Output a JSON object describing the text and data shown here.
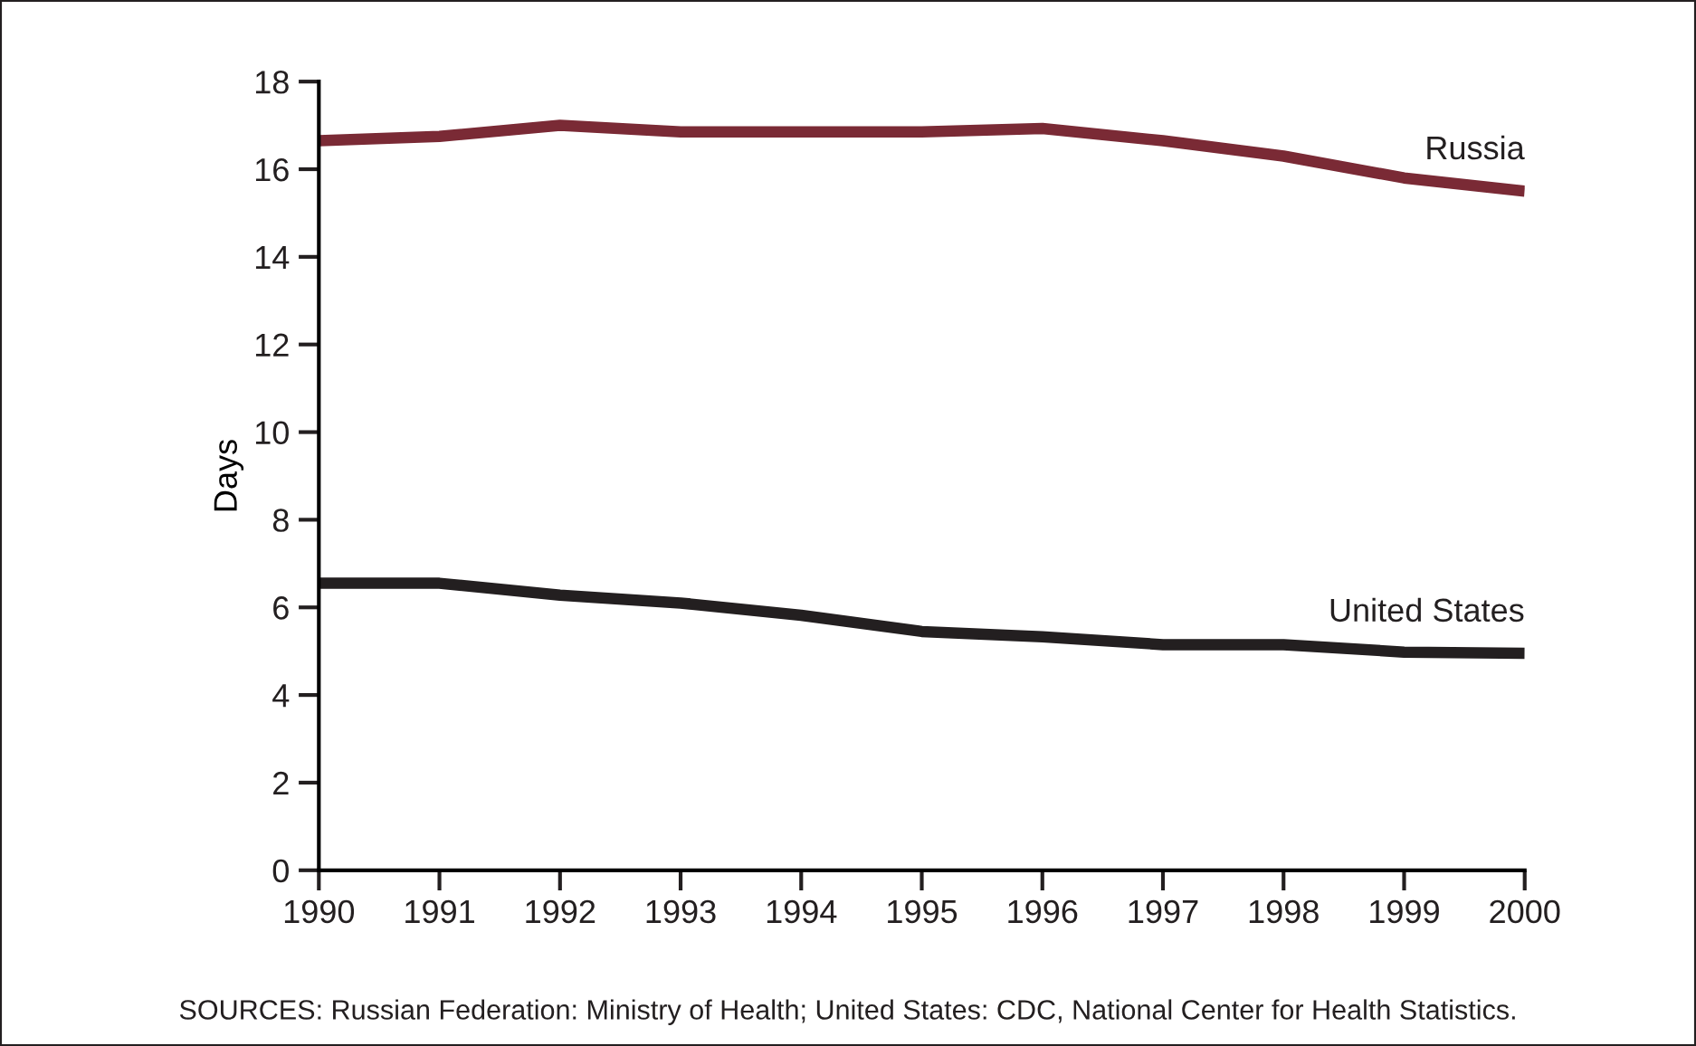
{
  "chart_data": {
    "type": "line",
    "ylabel": "Days",
    "x": [
      1990,
      1991,
      1992,
      1993,
      1994,
      1995,
      1996,
      1997,
      1998,
      1999,
      2000
    ],
    "series": [
      {
        "name": "Russia",
        "color": "#7a2a35",
        "values": [
          16.65,
          16.75,
          17.0,
          16.85,
          16.85,
          16.85,
          16.93,
          16.65,
          16.3,
          15.8,
          15.5
        ]
      },
      {
        "name": "United States",
        "color": "#231f20",
        "values": [
          6.55,
          6.55,
          6.28,
          6.1,
          5.82,
          5.45,
          5.33,
          5.15,
          5.15,
          4.98,
          4.95
        ]
      }
    ],
    "xlim": [
      1990,
      2000
    ],
    "xticks": [
      1990,
      1991,
      1992,
      1993,
      1994,
      1995,
      1996,
      1997,
      1998,
      1999,
      2000
    ],
    "ylim": [
      0,
      18
    ],
    "yticks": [
      0,
      2,
      4,
      6,
      8,
      10,
      12,
      14,
      16,
      18
    ],
    "grid": false,
    "legend": false,
    "marker": "none",
    "line_style": "solid",
    "annotations": [
      "SOURCES: Russian Federation: Ministry of Health; United States: CDC, National Center for Health Statistics."
    ]
  }
}
